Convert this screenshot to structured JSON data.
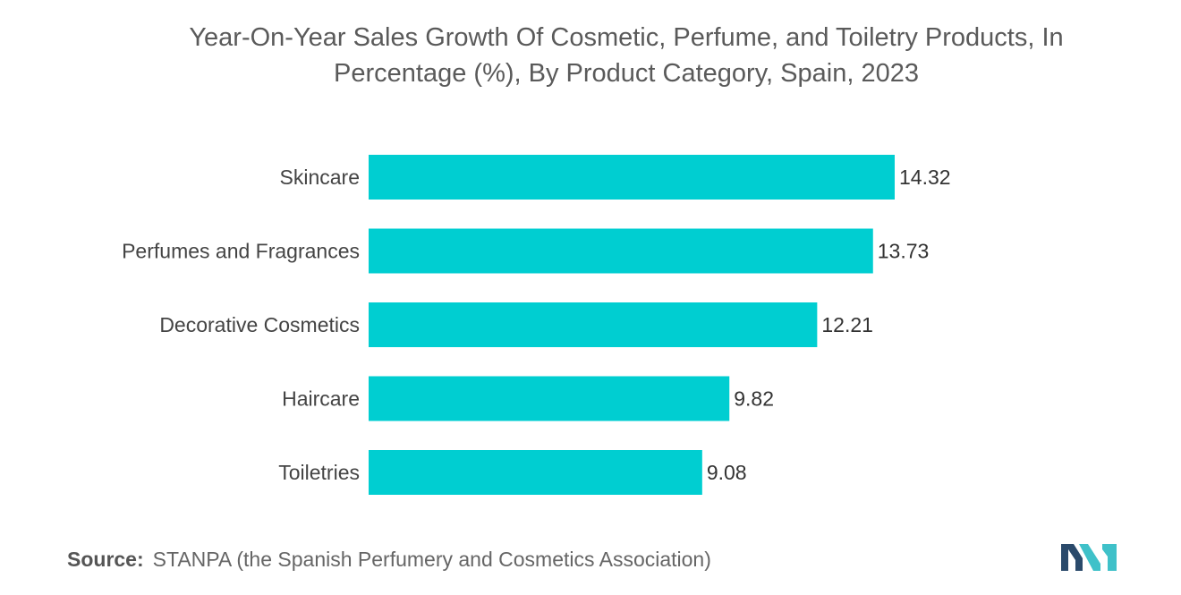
{
  "title_line1": "Year-On-Year Sales Growth Of Cosmetic, Perfume, and Toiletry Products, In",
  "title_line2": "Percentage (%), By Product Category, Spain, 2023",
  "source": {
    "label": "Source:",
    "text": "STANPA (the Spanish Perfumery and Cosmetics Association)"
  },
  "colors": {
    "bar": "#00CED1",
    "logo_dark": "#2a4a6b",
    "logo_teal": "#3fc1c9"
  },
  "chart_data": {
    "type": "bar",
    "orientation": "horizontal",
    "categories": [
      "Skincare",
      "Perfumes and Fragrances",
      "Decorative Cosmetics",
      "Haircare",
      "Toiletries"
    ],
    "values": [
      14.32,
      13.73,
      12.21,
      9.82,
      9.08
    ],
    "xlim": [
      0,
      18
    ],
    "grid": false,
    "legend": "none"
  }
}
